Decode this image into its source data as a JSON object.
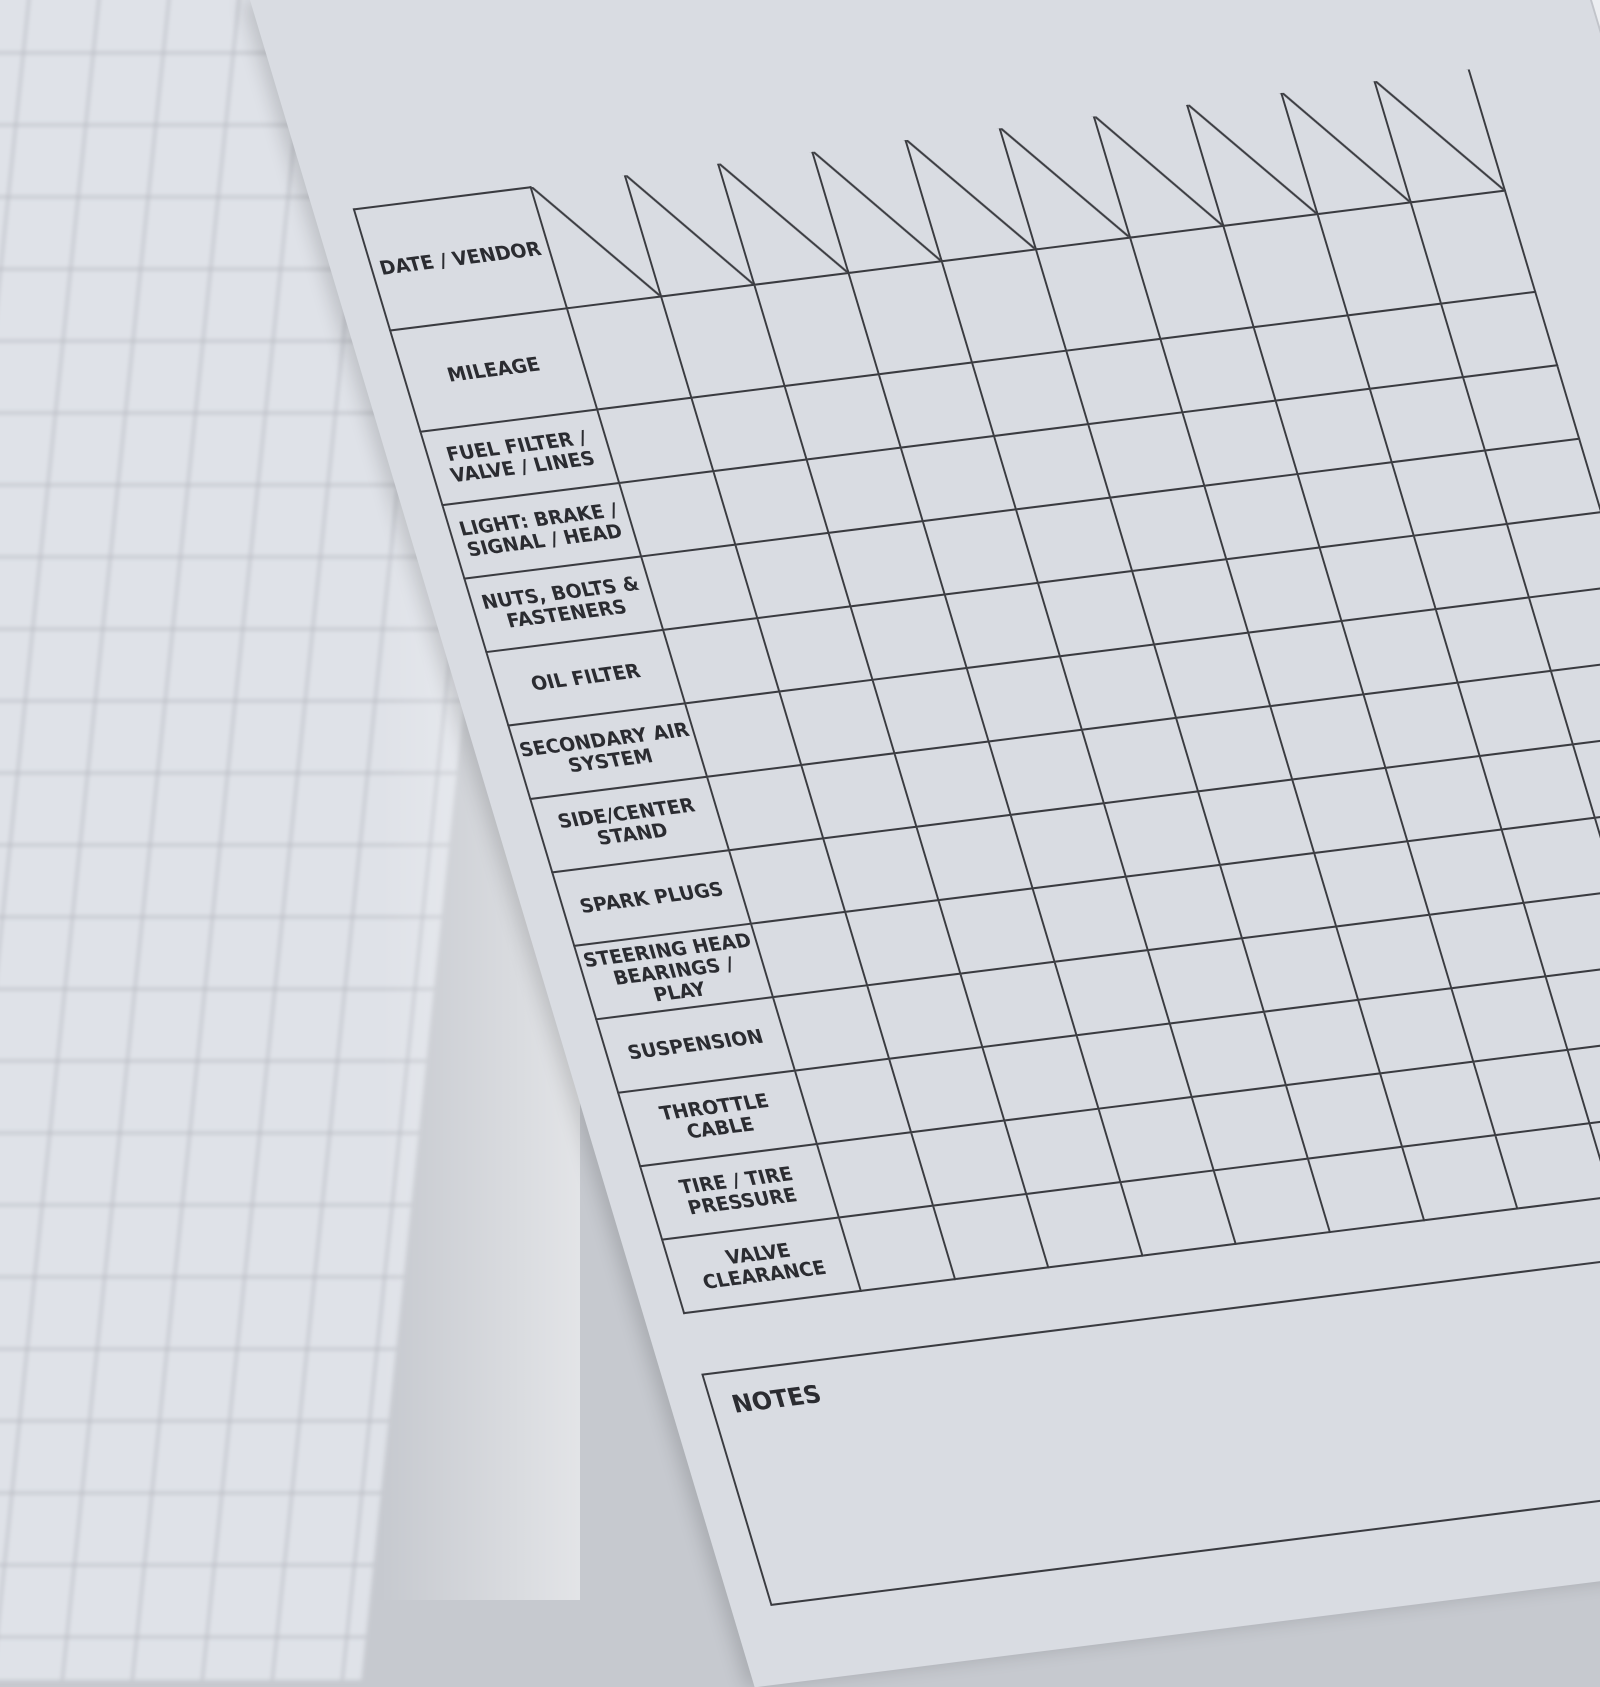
{
  "form": {
    "header_label": "DATE / VENDOR",
    "mileage_label": "MILEAGE",
    "items": [
      "FUEL FILTER / VALVE / LINES",
      "LIGHT: BRAKE / SIGNAL / HEAD",
      "NUTS, BOLTS & FASTENERS",
      "OIL FILTER",
      "SECONDARY AIR SYSTEM",
      "SIDE/CENTER STAND",
      "SPARK PLUGS",
      "STEERING HEAD BEARINGS / PLAY",
      "SUSPENSION",
      "THROTTLE CABLE",
      "TIRE / TIRE PRESSURE",
      "VALVE CLEARANCE"
    ],
    "notes_label": "NOTES"
  }
}
